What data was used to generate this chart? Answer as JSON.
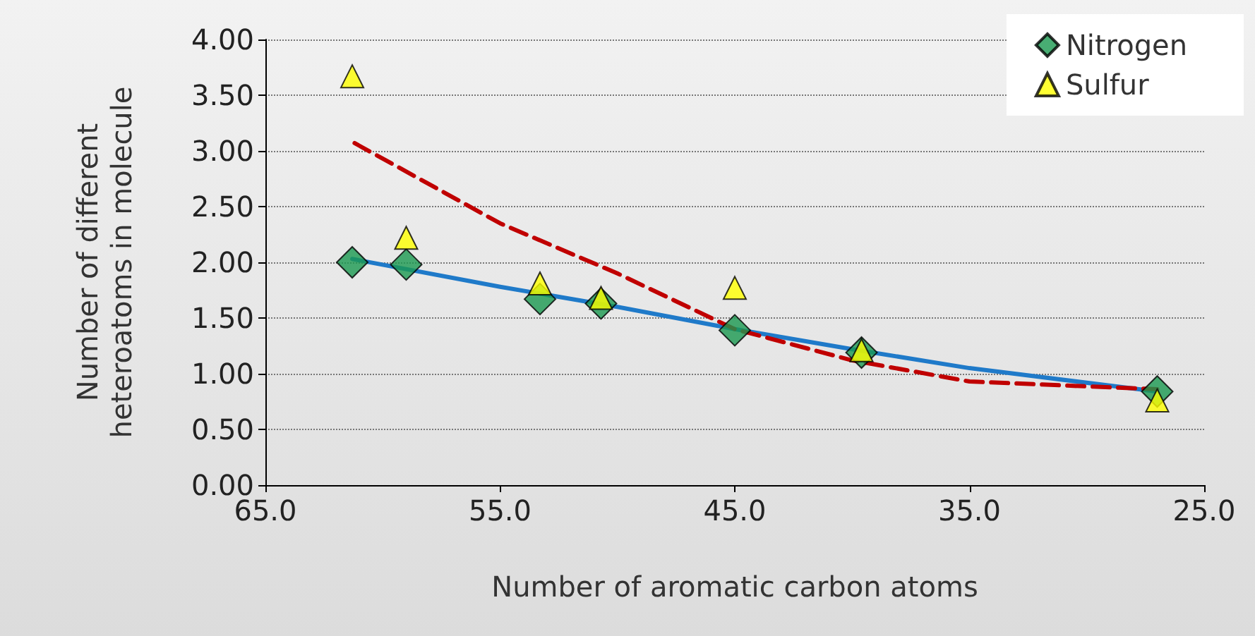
{
  "chart_data": {
    "type": "scatter",
    "xlabel": "Number of aromatic carbon atoms",
    "ylabel": "Number of different\nheteroatoms in molecule",
    "xlim": [
      65,
      25
    ],
    "xticks": [
      {
        "value": 65,
        "label": "65.0"
      },
      {
        "value": 55,
        "label": "55.0"
      },
      {
        "value": 45,
        "label": "45.0"
      },
      {
        "value": 35,
        "label": "35.0"
      },
      {
        "value": 25,
        "label": "25.0"
      }
    ],
    "ylim": [
      0,
      4
    ],
    "yticks": [
      {
        "value": 0,
        "label": "0.00"
      },
      {
        "value": 0.5,
        "label": "0.50"
      },
      {
        "value": 1,
        "label": "1.00"
      },
      {
        "value": 1.5,
        "label": "1.50"
      },
      {
        "value": 2,
        "label": "2.00"
      },
      {
        "value": 2.5,
        "label": "2.50"
      },
      {
        "value": 3,
        "label": "3.00"
      },
      {
        "value": 3.5,
        "label": "3.50"
      },
      {
        "value": 4,
        "label": "4.00"
      }
    ],
    "grid": "y",
    "legend": "top right",
    "series": [
      {
        "type": "line",
        "line_style": "solid",
        "color": "#1f7ac9",
        "x": [
          61.3,
          55,
          50,
          45,
          40,
          35,
          27
        ],
        "values": [
          2.03,
          1.78,
          1.6,
          1.4,
          1.22,
          1.05,
          0.84
        ]
      },
      {
        "type": "line",
        "line_style": "dashed",
        "color": "#c00000",
        "x": [
          61.2,
          55,
          50,
          45,
          40,
          35,
          27
        ],
        "values": [
          3.07,
          2.35,
          1.9,
          1.4,
          1.12,
          0.93,
          0.86
        ]
      },
      {
        "name": "Nitrogen",
        "type": "scatter",
        "marker": "diamond",
        "color": "#1a9850",
        "x": [
          61.3,
          59.0,
          53.3,
          50.7,
          45.0,
          39.6,
          27.0
        ],
        "values": [
          2.0,
          1.98,
          1.67,
          1.63,
          1.39,
          1.19,
          0.84
        ]
      },
      {
        "name": "Sulfur",
        "type": "scatter",
        "marker": "triangle",
        "color": "#ffff00",
        "x": [
          61.3,
          59.0,
          53.3,
          50.7,
          45.0,
          39.6,
          27.0
        ],
        "values": [
          3.67,
          2.22,
          1.81,
          1.68,
          1.77,
          1.21,
          0.76
        ]
      }
    ]
  }
}
